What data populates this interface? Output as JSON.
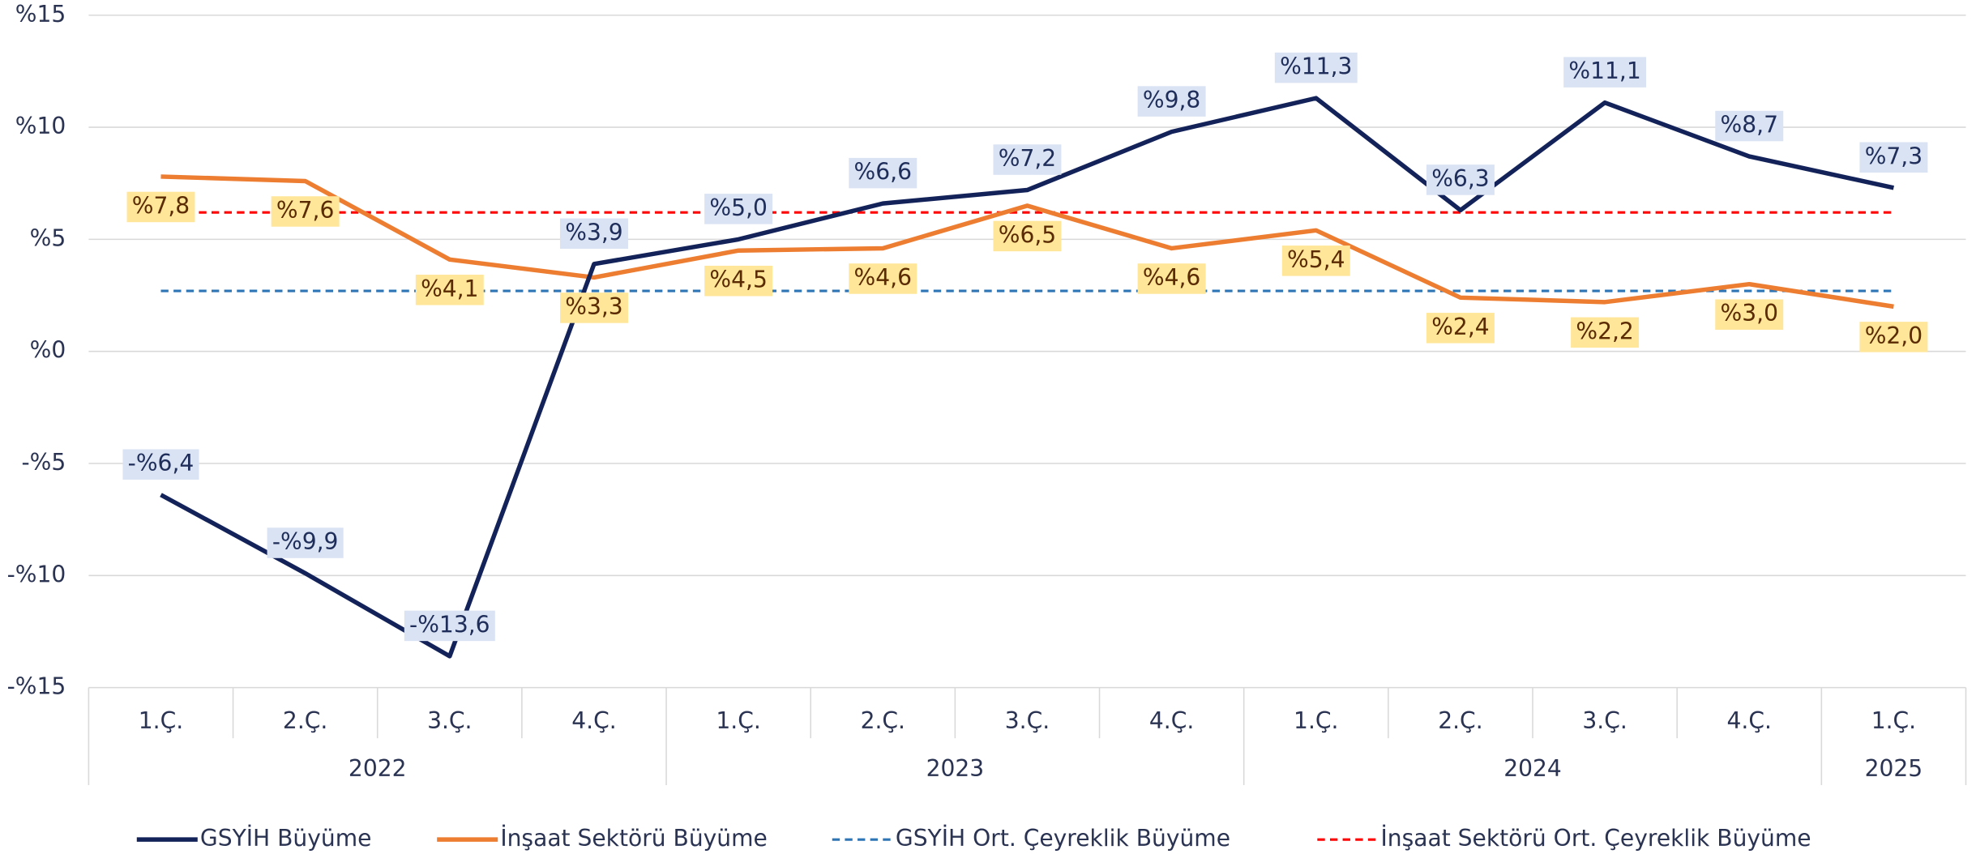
{
  "chart_data": {
    "type": "line",
    "categories": [
      "1.Ç.",
      "2.Ç.",
      "3.Ç.",
      "4.Ç.",
      "1.Ç.",
      "2.Ç.",
      "3.Ç.",
      "4.Ç.",
      "1.Ç.",
      "2.Ç.",
      "3.Ç.",
      "4.Ç.",
      "1.Ç."
    ],
    "years": [
      "2022",
      null,
      null,
      null,
      "2023",
      null,
      null,
      null,
      "2024",
      null,
      null,
      null,
      "2025"
    ],
    "ylim": [
      -15,
      15
    ],
    "yticks": [
      {
        "value": -15,
        "label": "-%15"
      },
      {
        "value": -10,
        "label": "-%10"
      },
      {
        "value": -5,
        "label": "-%5"
      },
      {
        "value": 0,
        "label": "%0"
      },
      {
        "value": 5,
        "label": "%5"
      },
      {
        "value": 10,
        "label": "%10"
      },
      {
        "value": 15,
        "label": "%15"
      }
    ],
    "grid": true,
    "legend": "bottom",
    "series": [
      {
        "name": "GSYİH Büyüme",
        "color": "#13235a",
        "style": "solid",
        "values": [
          -6.4,
          -9.9,
          -13.6,
          3.9,
          5.0,
          6.6,
          7.2,
          9.8,
          11.3,
          6.3,
          11.1,
          8.7,
          7.3
        ],
        "value_labels": [
          "-%6,4",
          "-%9,9",
          "-%13,6",
          "%3,9",
          "%5,0",
          "%6,6",
          "%7,2",
          "%9,8",
          "%11,3",
          "%6,3",
          "%11,1",
          "%8,7",
          "%7,3"
        ]
      },
      {
        "name": "İnşaat Sektörü Büyüme",
        "color": "#ed7d31",
        "style": "solid",
        "values": [
          7.8,
          7.6,
          4.1,
          3.3,
          4.5,
          4.6,
          6.5,
          4.6,
          5.4,
          2.4,
          2.2,
          3.0,
          2.0
        ],
        "value_labels": [
          "%7,8",
          "%7,6",
          "%4,1",
          "%3,3",
          "%4,5",
          "%4,6",
          "%6,5",
          "%4,6",
          "%5,4",
          "%2,4",
          "%2,2",
          "%3,0",
          "%2,0"
        ]
      },
      {
        "name": "GSYİH Ort. Çeyreklik Büyüme",
        "color": "#2e75b6",
        "style": "dashed",
        "values": [
          2.7,
          2.7,
          2.7,
          2.7,
          2.7,
          2.7,
          2.7,
          2.7,
          2.7,
          2.7,
          2.7,
          2.7,
          2.7
        ]
      },
      {
        "name": "İnşaat Sektörü Ort. Çeyreklik Büyüme",
        "color": "#ff0000",
        "style": "dashed",
        "values": [
          6.2,
          6.2,
          6.2,
          6.2,
          6.2,
          6.2,
          6.2,
          6.2,
          6.2,
          6.2,
          6.2,
          6.2,
          6.2
        ]
      }
    ]
  }
}
